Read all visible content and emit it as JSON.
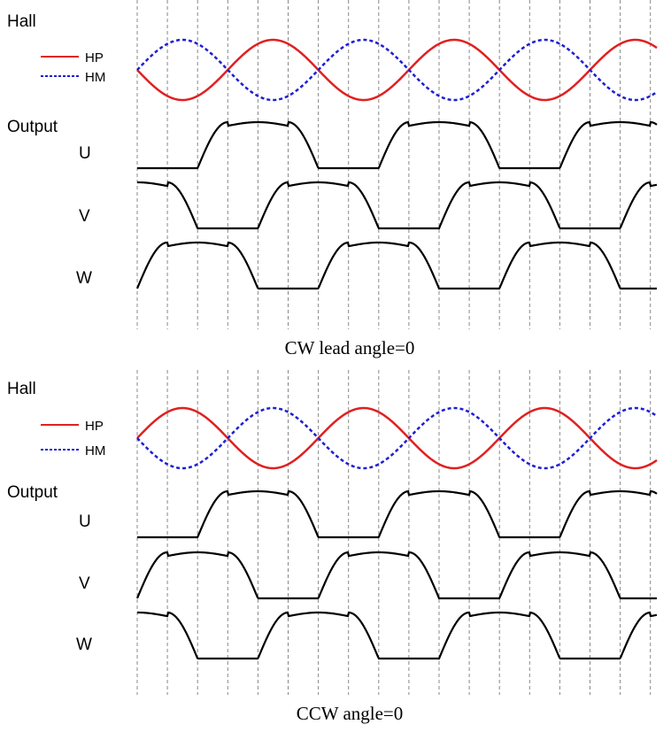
{
  "colors": {
    "hp": "#e02020",
    "hm": "#1f1fd2",
    "output": "#000000",
    "grid": "#888888"
  },
  "diagrams": [
    {
      "hall_label": "Hall",
      "output_label": "Output",
      "legend": {
        "hp": "HP",
        "hm": "HM"
      },
      "phases": [
        "U",
        "V",
        "W"
      ],
      "caption": "CW lead angle=0",
      "hp_start_phase_deg": 180,
      "output_start_phase_deg": [
        0,
        240,
        120
      ]
    },
    {
      "hall_label": "Hall",
      "output_label": "Output",
      "legend": {
        "hp": "HP",
        "hm": "HM"
      },
      "phases": [
        "U",
        "V",
        "W"
      ],
      "caption": "CCW angle=0",
      "hp_start_phase_deg": 0,
      "output_start_phase_deg": [
        0,
        120,
        240
      ]
    }
  ]
}
